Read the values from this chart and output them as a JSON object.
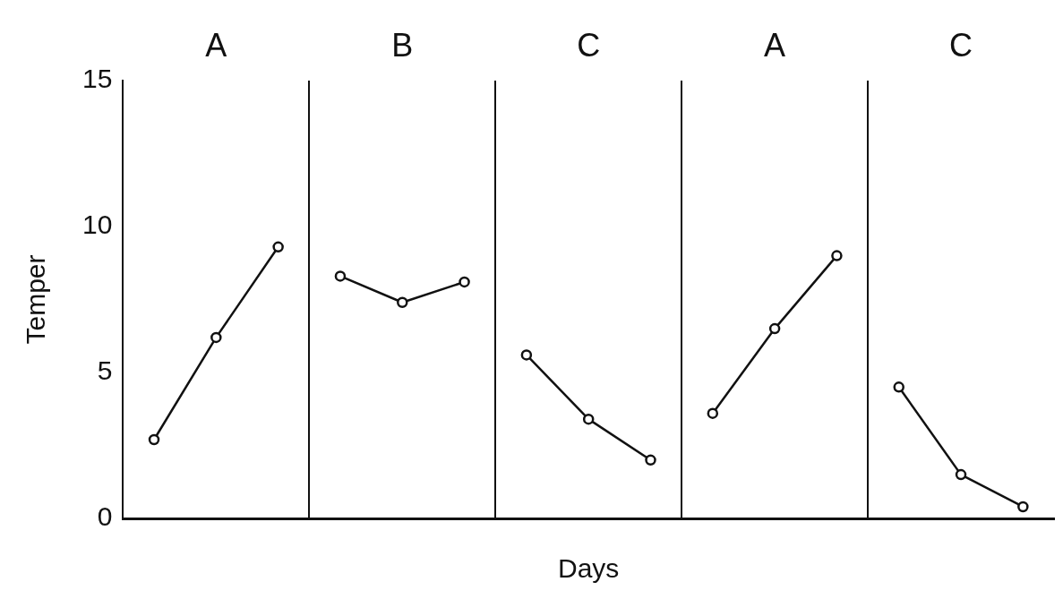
{
  "chart_data": {
    "type": "line",
    "xlabel": "Days",
    "ylabel": "Temper",
    "annotations": [
      "A",
      "B",
      "C",
      "A",
      "C"
    ],
    "categories": [
      null,
      null,
      null,
      null,
      null,
      null,
      null,
      null,
      null,
      null,
      null,
      null,
      null,
      null,
      null
    ],
    "series": [
      {
        "color": "#111111",
        "values": [
          2.7,
          6.2,
          9.3,
          null,
          null,
          null,
          null,
          null,
          null,
          null,
          null,
          null,
          null,
          null,
          null
        ]
      },
      {
        "color": "#111111",
        "values": [
          null,
          null,
          null,
          8.3,
          7.4,
          8.1,
          null,
          null,
          null,
          null,
          null,
          null,
          null,
          null,
          null
        ]
      },
      {
        "color": "#111111",
        "values": [
          null,
          null,
          null,
          null,
          null,
          null,
          5.6,
          3.4,
          2.0,
          null,
          null,
          null,
          null,
          null,
          null
        ]
      },
      {
        "color": "#111111",
        "values": [
          null,
          null,
          null,
          null,
          null,
          null,
          null,
          null,
          null,
          3.6,
          6.5,
          9.0,
          null,
          null,
          null
        ]
      },
      {
        "color": "#111111",
        "values": [
          null,
          null,
          null,
          null,
          null,
          null,
          null,
          null,
          null,
          null,
          null,
          null,
          4.5,
          1.5,
          0.4
        ]
      }
    ],
    "marker": "circle",
    "ylim": [
      0,
      15
    ],
    "yticks": [
      0,
      5,
      10,
      15
    ],
    "tick_labels": "y",
    "grid": false,
    "legend": false
  }
}
